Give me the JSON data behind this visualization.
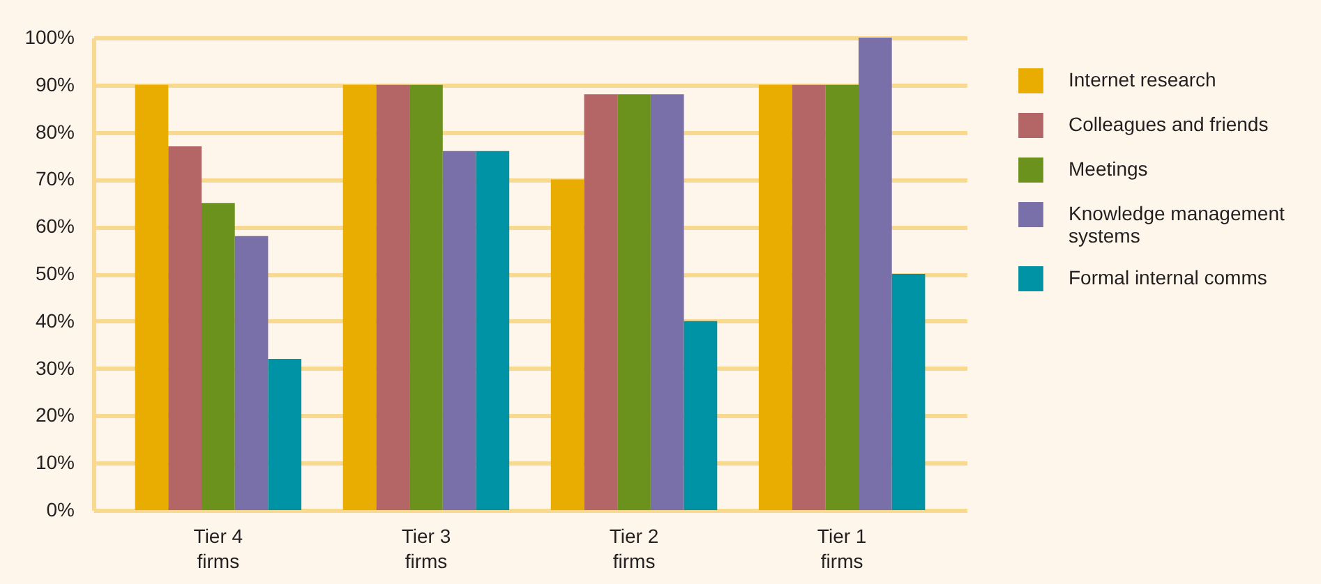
{
  "chart_data": {
    "type": "bar",
    "categories": [
      "Tier 4 firms",
      "Tier 3 firms",
      "Tier 2 firms",
      "Tier 1 firms"
    ],
    "series": [
      {
        "name": "Internet research",
        "color": "#e8ad00",
        "values": [
          90,
          90,
          70,
          90
        ]
      },
      {
        "name": "Colleagues and friends",
        "color": "#b36665",
        "values": [
          77,
          90,
          88,
          90
        ]
      },
      {
        "name": "Meetings",
        "color": "#6a921c",
        "values": [
          65,
          90,
          88,
          90
        ]
      },
      {
        "name": "Knowledge management systems",
        "color": "#7970a9",
        "values": [
          58,
          76,
          88,
          100
        ]
      },
      {
        "name": "Formal internal comms",
        "color": "#0093a5",
        "values": [
          32,
          76,
          40,
          50
        ]
      }
    ],
    "ylim": [
      0,
      100
    ],
    "yticks": [
      {
        "value": 0,
        "label": "0%"
      },
      {
        "value": 10,
        "label": "10%"
      },
      {
        "value": 20,
        "label": "20%"
      },
      {
        "value": 30,
        "label": "30%"
      },
      {
        "value": 40,
        "label": "40%"
      },
      {
        "value": 50,
        "label": "50%"
      },
      {
        "value": 60,
        "label": "60%"
      },
      {
        "value": 70,
        "label": "70%"
      },
      {
        "value": 80,
        "label": "80%"
      },
      {
        "value": 90,
        "label": "90%"
      },
      {
        "value": 100,
        "label": "100%"
      }
    ],
    "grid": "y",
    "legend": "right"
  }
}
